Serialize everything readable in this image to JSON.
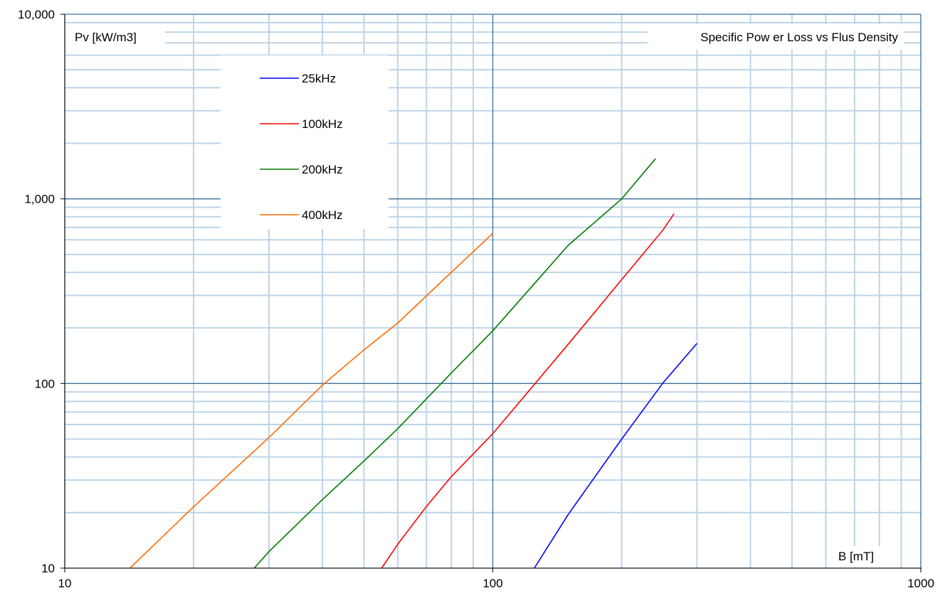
{
  "chart_data": {
    "type": "line",
    "title": "Specific Pow er Loss vs Flus Density",
    "xlabel": "B [mT]",
    "ylabel": "Pv [kW/m3]",
    "x_scale": "log",
    "y_scale": "log",
    "xlim": [
      10,
      1000
    ],
    "ylim": [
      10,
      10000
    ],
    "x_ticks": [
      10,
      100,
      1000
    ],
    "x_tick_labels": [
      "10",
      "100",
      "1000"
    ],
    "y_ticks": [
      10,
      100,
      1000,
      10000
    ],
    "y_tick_labels": [
      "10",
      "100",
      "1,000",
      "10,000"
    ],
    "grid": true,
    "legend_position": "top-left",
    "series": [
      {
        "name": "25kHz",
        "color": "#0000ff",
        "x": [
          125,
          150,
          200,
          250,
          300
        ],
        "y": [
          10,
          19.5,
          50,
          101,
          165
        ]
      },
      {
        "name": "100kHz",
        "color": "#ff0000",
        "x": [
          55,
          60,
          70,
          80,
          100,
          150,
          200,
          250,
          265
        ],
        "y": [
          10,
          13.5,
          21.6,
          31.3,
          53.5,
          163,
          365,
          680,
          830
        ]
      },
      {
        "name": "200kHz",
        "color": "#007a00",
        "x": [
          27.7,
          30,
          40,
          50,
          60,
          80,
          100,
          150,
          200,
          240
        ],
        "y": [
          10,
          12.3,
          23.5,
          38,
          57,
          114,
          193,
          560,
          1000,
          1650
        ]
      },
      {
        "name": "400kHz",
        "color": "#ff6a00",
        "x": [
          14.2,
          20,
          30,
          40,
          50,
          60,
          80,
          100
        ],
        "y": [
          10,
          21.5,
          51,
          98,
          152,
          213,
          400,
          650
        ]
      }
    ]
  }
}
